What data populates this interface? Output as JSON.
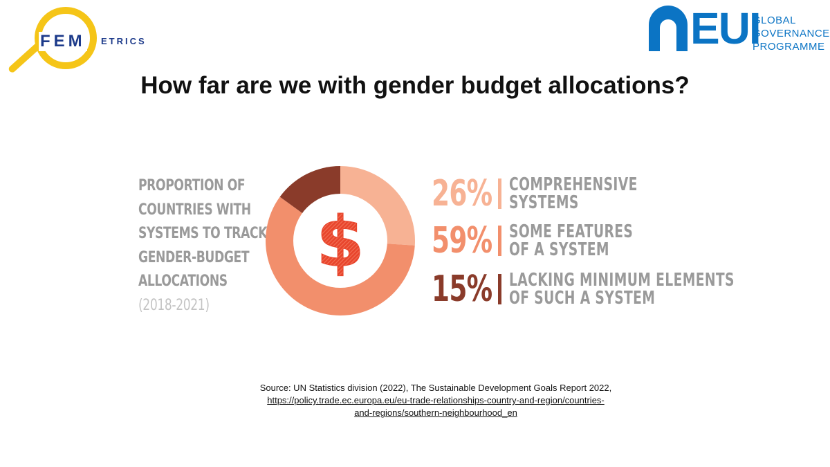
{
  "logos": {
    "femetrics": {
      "main": "FEM",
      "sub": "ETRICS"
    },
    "eui": {
      "main": "EUI",
      "sub_lines": [
        "GLOBAL",
        "GOVERNANCE",
        "PROGRAMME"
      ]
    }
  },
  "title": "How far are we with gender budget allocations?",
  "description": {
    "lines": [
      "PROPORTION OF",
      "COUNTRIES WITH",
      "SYSTEMS TO TRACK",
      "GENDER-BUDGET",
      "ALLOCATIONS"
    ],
    "period": "(2018-2021)"
  },
  "chart_data": {
    "type": "pie",
    "donut": true,
    "center_symbol": "$",
    "slices": [
      {
        "label_lines": [
          "COMPREHENSIVE",
          "SYSTEMS"
        ],
        "value": 26,
        "value_label": "26%",
        "color": "#f7b294"
      },
      {
        "label_lines": [
          "SOME FEATURES",
          "OF A SYSTEM"
        ],
        "value": 59,
        "value_label": "59%",
        "color": "#f28f6c"
      },
      {
        "label_lines": [
          "LACKING MINIMUM ELEMENTS",
          "OF SUCH A SYSTEM"
        ],
        "value": 15,
        "value_label": "15%",
        "color": "#8a3b2a"
      }
    ],
    "center_color": "#e8452c"
  },
  "source": {
    "text": "Source: UN Statistics division (2022), The Sustainable Development Goals Report 2022,",
    "link_line1": "https://policy.trade.ec.europa.eu/eu-trade-relationships-country-and-region/countries-",
    "link_line2": "and-regions/southern-neighbourhood_en"
  }
}
